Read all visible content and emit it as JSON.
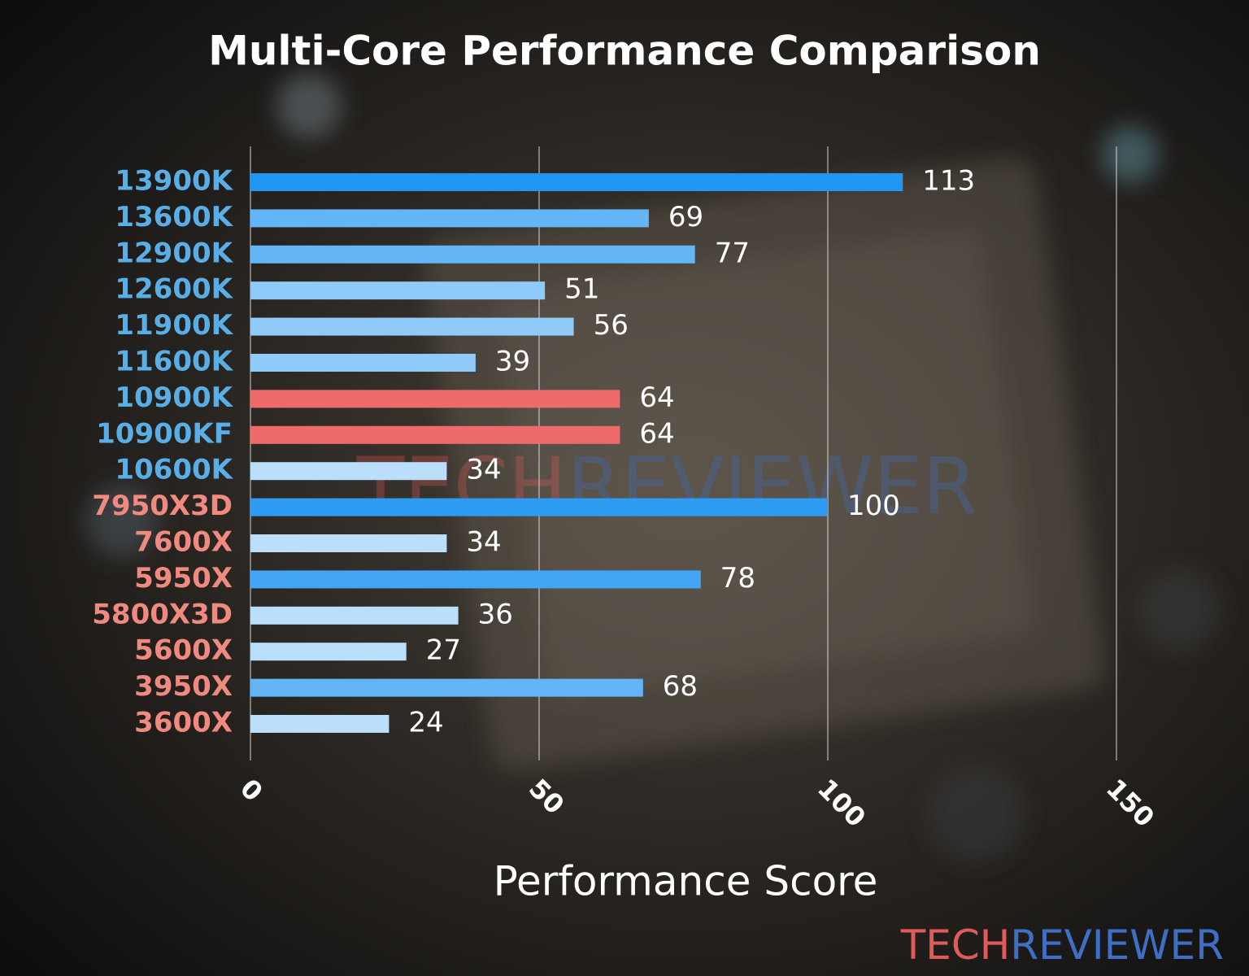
{
  "chart_data": {
    "type": "bar",
    "orientation": "horizontal",
    "title": "Multi-Core Performance Comparison",
    "x_label": "Performance Score",
    "categories": [
      "13900K",
      "13600K",
      "12900K",
      "12600K",
      "11900K",
      "11600K",
      "10900K",
      "10900KF",
      "10600K",
      "7950X3D",
      "7600X",
      "5950X",
      "5800X3D",
      "5600X",
      "3950X",
      "3600X"
    ],
    "values": [
      113,
      69,
      77,
      51,
      56,
      39,
      64,
      64,
      34,
      100,
      34,
      78,
      36,
      27,
      68,
      24
    ],
    "colors": [
      "#2196f3",
      "#64b5f6",
      "#64b5f6",
      "#90caf9",
      "#90caf9",
      "#90caf9",
      "#ef6b6b",
      "#ef6b6b",
      "#bbdefb",
      "#2f9cf4",
      "#bbdefb",
      "#42a5f5",
      "#bbdefb",
      "#bbdefb",
      "#64b5f6",
      "#bbdefb"
    ],
    "label_colors": [
      "#5aaee6",
      "#5aaee6",
      "#5aaee6",
      "#5aaee6",
      "#5aaee6",
      "#5aaee6",
      "#5aaee6",
      "#5aaee6",
      "#5aaee6",
      "#f08a80",
      "#f08a80",
      "#f08a80",
      "#f08a80",
      "#f08a80",
      "#f08a80",
      "#f08a80"
    ],
    "xlim": [
      0,
      150
    ],
    "xticks": [
      0,
      50,
      100,
      150
    ],
    "grid": true,
    "watermark": [
      "TECH",
      "REVIEWER"
    ],
    "watermark_colors": [
      "#e05a5a",
      "#3f6fc4"
    ]
  }
}
